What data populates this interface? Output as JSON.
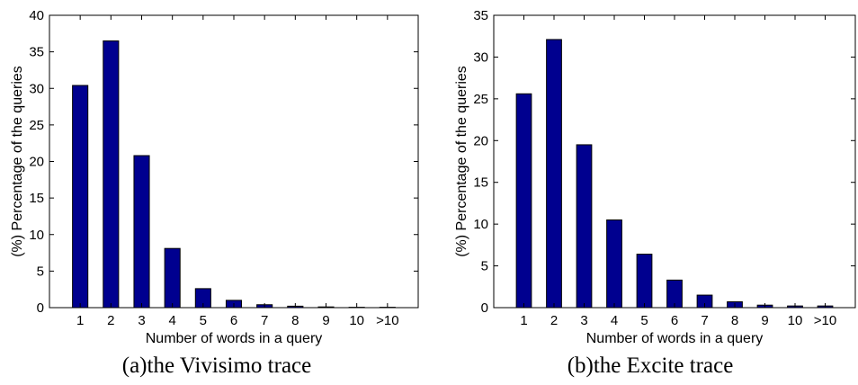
{
  "chart_data": [
    {
      "type": "bar",
      "caption": "(a)the Vivisimo trace",
      "xlabel": "Number of words in a query",
      "ylabel": "(%) Percentage of the queries",
      "categories": [
        "1",
        "2",
        "3",
        "4",
        "5",
        "6",
        "7",
        "8",
        "9",
        "10",
        ">10"
      ],
      "values": [
        30.4,
        36.5,
        20.8,
        8.1,
        2.6,
        1.0,
        0.4,
        0.2,
        0.1,
        0.05,
        0.05
      ],
      "ylim": [
        0,
        40
      ],
      "yticks": [
        0,
        5,
        10,
        15,
        20,
        25,
        30,
        35,
        40
      ],
      "color": "#00008f"
    },
    {
      "type": "bar",
      "caption": "(b)the Excite trace",
      "xlabel": "Number of words in a query",
      "ylabel": "(%) Percentage of the queries",
      "categories": [
        "1",
        "2",
        "3",
        "4",
        "5",
        "6",
        "7",
        "8",
        "9",
        "10",
        ">10"
      ],
      "values": [
        25.6,
        32.1,
        19.5,
        10.5,
        6.4,
        3.3,
        1.5,
        0.7,
        0.3,
        0.2,
        0.2
      ],
      "ylim": [
        0,
        35
      ],
      "yticks": [
        0,
        5,
        10,
        15,
        20,
        25,
        30,
        35
      ],
      "color": "#00008f"
    }
  ]
}
